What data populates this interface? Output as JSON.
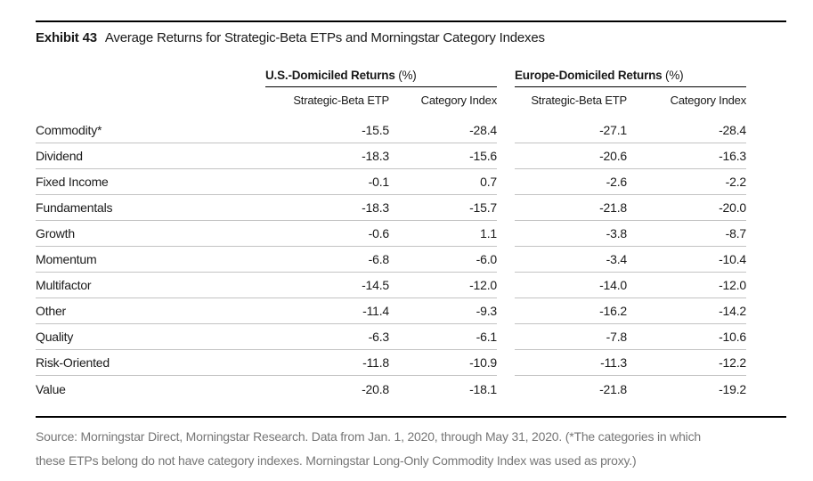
{
  "exhibit": {
    "label": "Exhibit 43",
    "title": "Average Returns for Strategic-Beta ETPs and Morningstar Category Indexes"
  },
  "table": {
    "groups": {
      "us": {
        "label": "U.S.-Domiciled Returns",
        "suffix": "(%)"
      },
      "europe": {
        "label": "Europe-Domiciled Returns",
        "suffix": "(%)"
      }
    },
    "subheaders": {
      "us_etp": "Strategic-Beta ETP",
      "us_index": "Category Index",
      "eu_etp": "Strategic-Beta ETP",
      "eu_index": "Category Index"
    },
    "rows": [
      {
        "category": "Commodity*",
        "us_etp": "-15.5",
        "us_index": "-28.4",
        "eu_etp": "-27.1",
        "eu_index": "-28.4"
      },
      {
        "category": "Dividend",
        "us_etp": "-18.3",
        "us_index": "-15.6",
        "eu_etp": "-20.6",
        "eu_index": "-16.3"
      },
      {
        "category": "Fixed Income",
        "us_etp": "-0.1",
        "us_index": "0.7",
        "eu_etp": "-2.6",
        "eu_index": "-2.2"
      },
      {
        "category": "Fundamentals",
        "us_etp": "-18.3",
        "us_index": "-15.7",
        "eu_etp": "-21.8",
        "eu_index": "-20.0"
      },
      {
        "category": "Growth",
        "us_etp": "-0.6",
        "us_index": "1.1",
        "eu_etp": "-3.8",
        "eu_index": "-8.7"
      },
      {
        "category": "Momentum",
        "us_etp": "-6.8",
        "us_index": "-6.0",
        "eu_etp": "-3.4",
        "eu_index": "-10.4"
      },
      {
        "category": "Multifactor",
        "us_etp": "-14.5",
        "us_index": "-12.0",
        "eu_etp": "-14.0",
        "eu_index": "-12.0"
      },
      {
        "category": "Other",
        "us_etp": "-11.4",
        "us_index": "-9.3",
        "eu_etp": "-16.2",
        "eu_index": "-14.2"
      },
      {
        "category": "Quality",
        "us_etp": "-6.3",
        "us_index": "-6.1",
        "eu_etp": "-7.8",
        "eu_index": "-10.6"
      },
      {
        "category": "Risk-Oriented",
        "us_etp": "-11.8",
        "us_index": "-10.9",
        "eu_etp": "-11.3",
        "eu_index": "-12.2"
      },
      {
        "category": "Value",
        "us_etp": "-20.8",
        "us_index": "-18.1",
        "eu_etp": "-21.8",
        "eu_index": "-19.2"
      }
    ]
  },
  "footer": {
    "line1": "Source: Morningstar Direct, Morningstar Research. Data from Jan. 1, 2020, through May 31, 2020. (*The categories in which",
    "line2": "these ETPs belong do not have category indexes. Morningstar Long-Only Commodity Index was used as proxy.)"
  },
  "colors": {
    "text": "#1a1a1a",
    "rule": "#000000",
    "row_separator": "#c3c3c3",
    "footer_text": "#767676"
  }
}
